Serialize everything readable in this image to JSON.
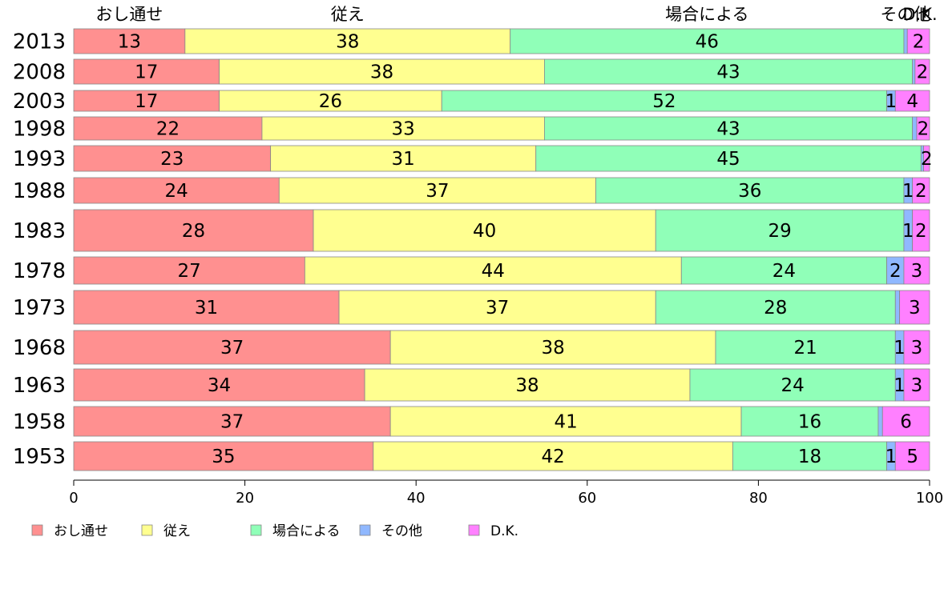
{
  "chart_data": {
    "type": "bar",
    "orientation": "horizontal",
    "stacked": true,
    "categories": [
      "2013",
      "2008",
      "2003",
      "1998",
      "1993",
      "1988",
      "1983",
      "1978",
      "1973",
      "1968",
      "1963",
      "1958",
      "1953"
    ],
    "series": [
      {
        "name": "おし通せ",
        "color": "#ff9090",
        "values": [
          13,
          17,
          17,
          22,
          23,
          24,
          28,
          27,
          31,
          37,
          34,
          37,
          35
        ]
      },
      {
        "name": "従え",
        "color": "#ffff90",
        "values": [
          38,
          38,
          26,
          33,
          31,
          37,
          40,
          44,
          37,
          38,
          38,
          41,
          42
        ]
      },
      {
        "name": "場合による",
        "color": "#90ffb8",
        "values": [
          46,
          43,
          52,
          43,
          45,
          36,
          29,
          24,
          28,
          21,
          24,
          16,
          18
        ]
      },
      {
        "name": "その他",
        "color": "#90b8ff",
        "values": [
          0.4,
          0.3,
          1,
          0.5,
          0.3,
          1,
          1,
          2,
          0.5,
          1,
          1,
          0.5,
          1
        ]
      },
      {
        "name": "D.K.",
        "color": "#ff80ff",
        "values": [
          2,
          2,
          4,
          2,
          2,
          2,
          2,
          3,
          3,
          3,
          3,
          6,
          5
        ]
      }
    ],
    "value_labels": [
      [
        "13",
        "38",
        "46",
        "",
        "2"
      ],
      [
        "17",
        "38",
        "43",
        "",
        "2"
      ],
      [
        "17",
        "26",
        "52",
        "1",
        "4"
      ],
      [
        "22",
        "33",
        "43",
        "",
        "2"
      ],
      [
        "23",
        "31",
        "45",
        "",
        "2"
      ],
      [
        "24",
        "37",
        "36",
        "1",
        "2"
      ],
      [
        "28",
        "40",
        "29",
        "1",
        "2"
      ],
      [
        "27",
        "44",
        "24",
        "2",
        "3"
      ],
      [
        "31",
        "37",
        "28",
        "",
        "3"
      ],
      [
        "37",
        "38",
        "21",
        "1",
        "3"
      ],
      [
        "34",
        "38",
        "24",
        "1",
        "3"
      ],
      [
        "37",
        "41",
        "16",
        "",
        "6"
      ],
      [
        "35",
        "42",
        "18",
        "1",
        "5"
      ]
    ],
    "top_labels": [
      "おし通せ",
      "従え",
      "場合による",
      "その他",
      "D.K."
    ],
    "xlim": [
      0,
      100
    ],
    "xticks": [
      "0",
      "20",
      "40",
      "60",
      "80",
      "100"
    ],
    "legend_position": "bottom-left",
    "grid": false
  }
}
